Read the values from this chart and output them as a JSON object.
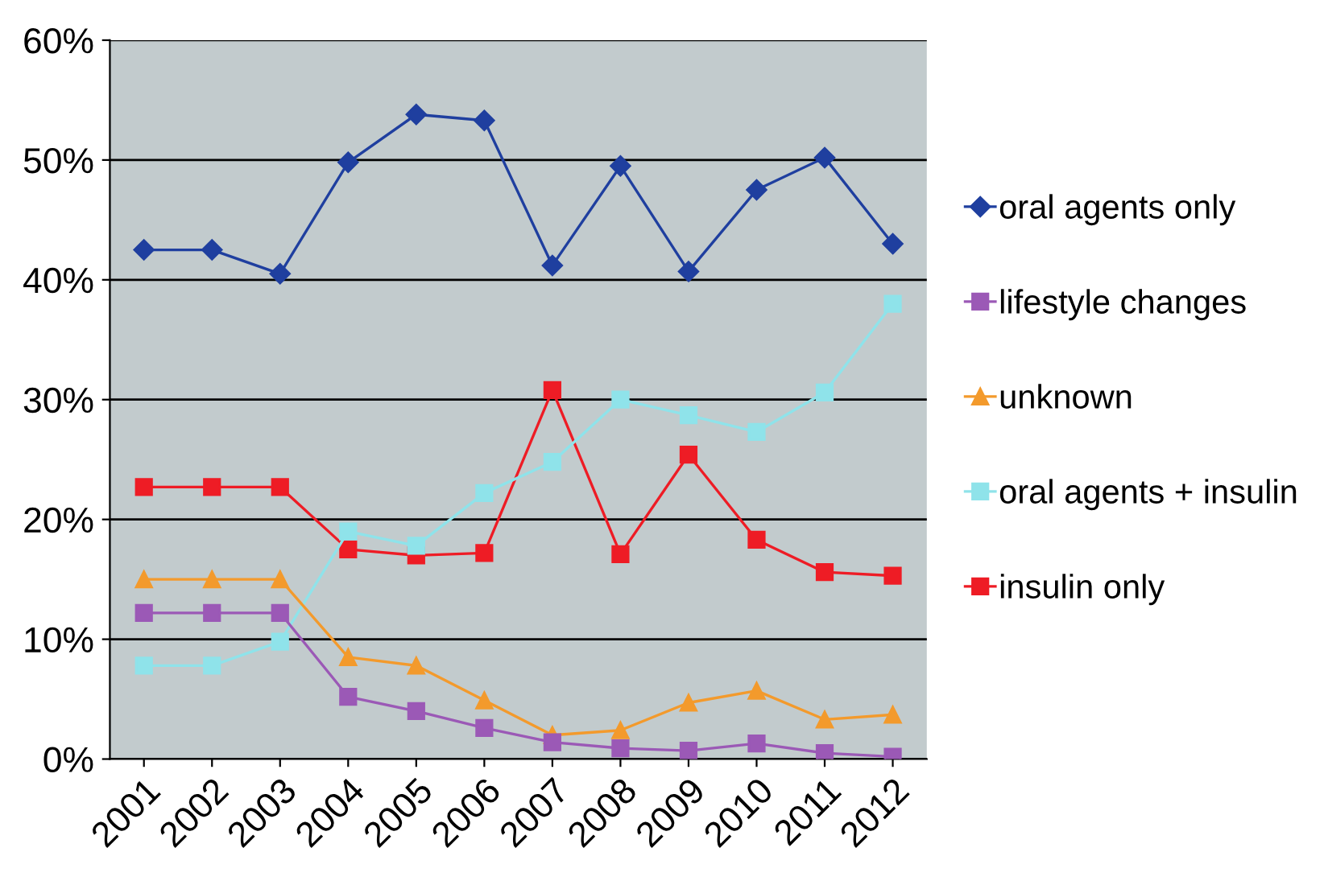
{
  "chart_data": {
    "type": "line",
    "categories": [
      "2001",
      "2002",
      "2003",
      "2004",
      "2005",
      "2006",
      "2007",
      "2008",
      "2009",
      "2010",
      "2011",
      "2012"
    ],
    "series": [
      {
        "name": "oral agents only",
        "color": "#1f3f9f",
        "marker": "diamond",
        "values": [
          42.5,
          42.5,
          40.5,
          49.8,
          53.8,
          53.3,
          41.2,
          49.5,
          40.7,
          47.5,
          50.2,
          43
        ]
      },
      {
        "name": "lifestyle changes",
        "color": "#9b59b6",
        "marker": "square",
        "values": [
          12.2,
          12.2,
          12.2,
          5.2,
          4,
          2.6,
          1.4,
          0.9,
          0.7,
          1.3,
          0.5,
          0.2
        ]
      },
      {
        "name": "unknown",
        "color": "#f39a2c",
        "marker": "triangle",
        "values": [
          15,
          15,
          15,
          8.5,
          7.8,
          4.9,
          2,
          2.4,
          4.7,
          5.7,
          3.3,
          3.7
        ]
      },
      {
        "name": "oral agents + insulin",
        "color": "#8fe3ea",
        "marker": "square",
        "values": [
          7.8,
          7.8,
          9.8,
          19,
          17.8,
          22.2,
          24.8,
          30,
          28.7,
          27.3,
          30.6,
          38
        ]
      },
      {
        "name": "insulin only",
        "color": "#ee1c25",
        "marker": "square",
        "values": [
          22.7,
          22.7,
          22.7,
          17.5,
          17,
          17.2,
          30.8,
          17.1,
          25.4,
          18.3,
          15.6,
          15.3
        ]
      }
    ],
    "ylim": [
      0,
      60
    ],
    "yticks": [
      {
        "value": 0,
        "label": "0%"
      },
      {
        "value": 10,
        "label": "10%"
      },
      {
        "value": 20,
        "label": "20%"
      },
      {
        "value": 30,
        "label": "30%"
      },
      {
        "value": 40,
        "label": "40%"
      },
      {
        "value": 50,
        "label": "50%"
      },
      {
        "value": 60,
        "label": "60%"
      }
    ],
    "grid": "y",
    "legend": "right",
    "line_style": "solid"
  }
}
